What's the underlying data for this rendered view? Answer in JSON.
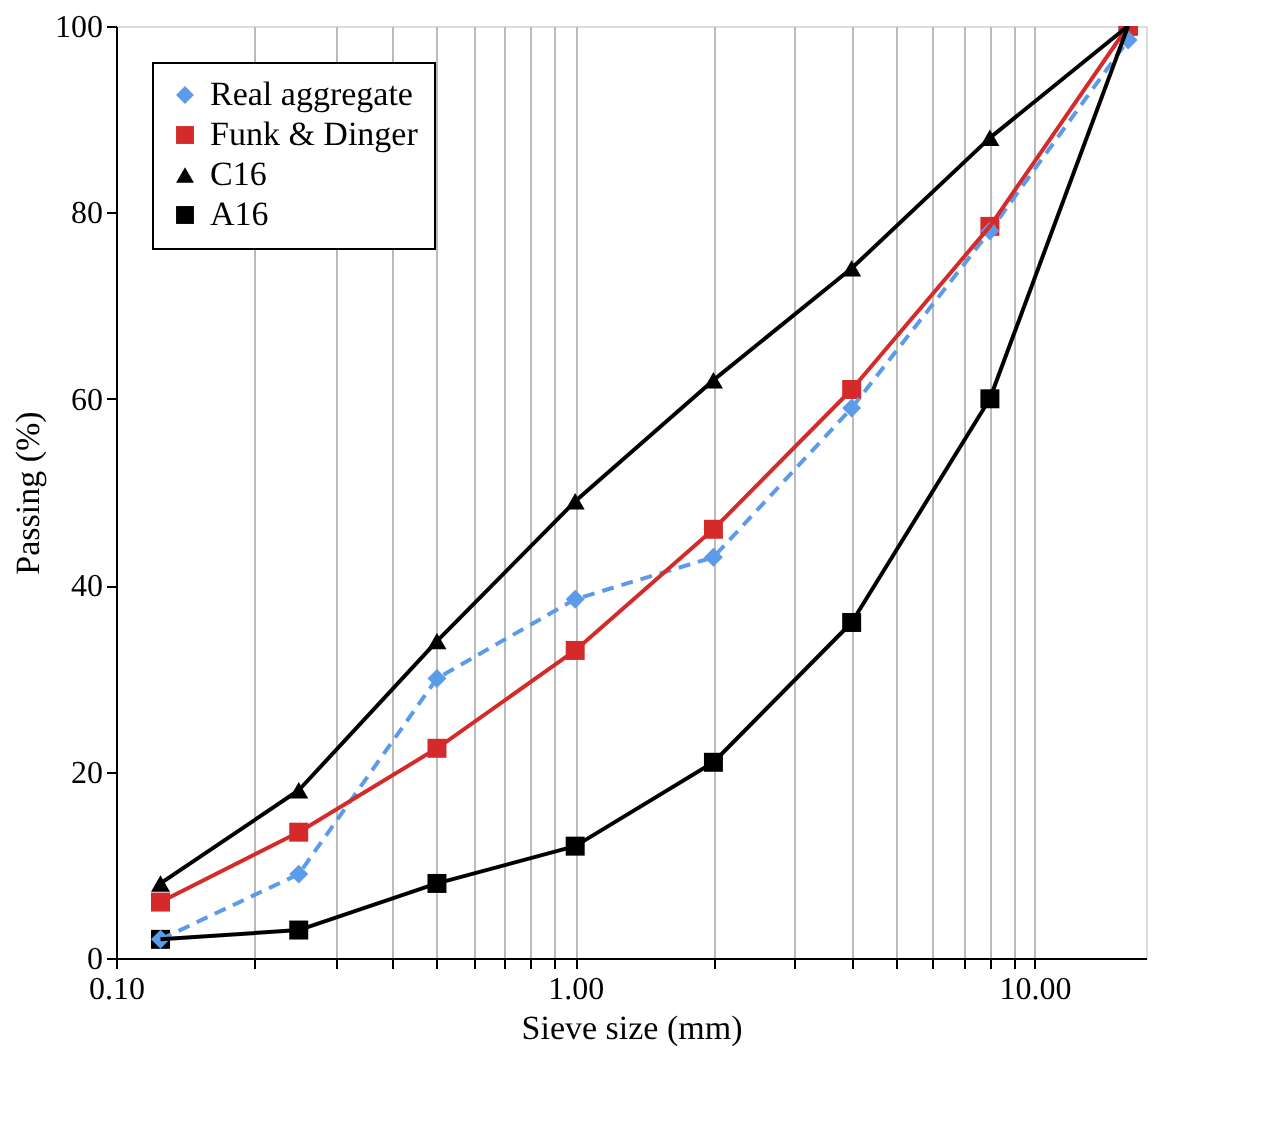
{
  "chart_data": {
    "type": "line",
    "xlabel": "Sieve size (mm)",
    "ylabel": "Passing (%)",
    "log": "x",
    "grid": "x",
    "legend": "top left",
    "x": [
      0.125,
      0.25,
      0.5,
      1,
      2,
      4,
      8,
      16
    ],
    "xlim": [
      0.1,
      17.5
    ],
    "xticks": [
      {
        "value": 0.1,
        "label": "0.10"
      },
      {
        "value": 0.2,
        "label": null
      },
      {
        "value": 0.3,
        "label": null
      },
      {
        "value": 0.4,
        "label": null
      },
      {
        "value": 0.5,
        "label": null
      },
      {
        "value": 0.6,
        "label": null
      },
      {
        "value": 0.7,
        "label": null
      },
      {
        "value": 0.8,
        "label": null
      },
      {
        "value": 0.9,
        "label": null
      },
      {
        "value": 1,
        "label": "1.00"
      },
      {
        "value": 2,
        "label": null
      },
      {
        "value": 3,
        "label": null
      },
      {
        "value": 4,
        "label": null
      },
      {
        "value": 5,
        "label": null
      },
      {
        "value": 6,
        "label": null
      },
      {
        "value": 7,
        "label": null
      },
      {
        "value": 8,
        "label": null
      },
      {
        "value": 9,
        "label": null
      },
      {
        "value": 10,
        "label": "10.00"
      }
    ],
    "ylim": [
      0,
      100
    ],
    "yticks": [
      0,
      20,
      40,
      60,
      80,
      100
    ],
    "series": [
      {
        "name": "Real aggregate",
        "color": "#5b9bea",
        "marker": "diamond",
        "line_style": "dashed",
        "values": [
          2,
          9,
          30,
          38.5,
          43,
          59,
          78,
          98.5
        ]
      },
      {
        "name": "Funk & Dinger",
        "color": "#d42a2a",
        "marker": "square",
        "line_style": "solid",
        "values": [
          6,
          13.5,
          22.5,
          33,
          46,
          61,
          78.5,
          100
        ]
      },
      {
        "name": "C16",
        "color": "#000000",
        "marker": "triangle",
        "line_style": "solid",
        "values": [
          8,
          18,
          34,
          49,
          62,
          74,
          88,
          100
        ]
      },
      {
        "name": "A16",
        "color": "#000000",
        "marker": "square",
        "line_style": "solid",
        "values": [
          2,
          3,
          8,
          12,
          21,
          36,
          60,
          100
        ]
      }
    ]
  }
}
